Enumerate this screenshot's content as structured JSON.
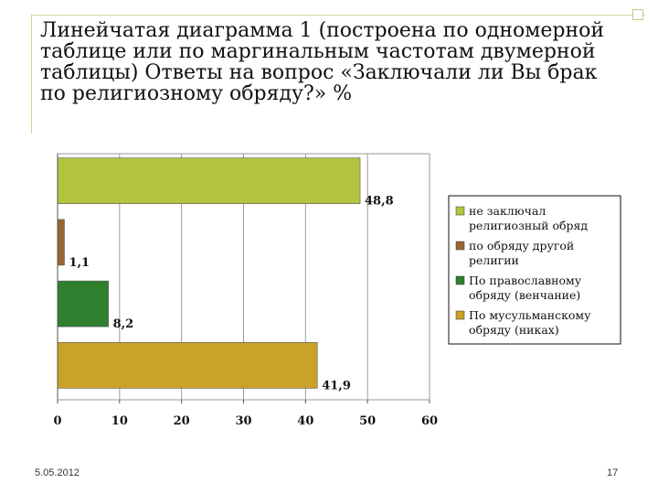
{
  "title": "Линейчатая диаграмма 1 (построена по одномерной таблице или по маргинальным частотам двумерной таблицы) Ответы на вопрос «Заключали ли Вы брак по религиозному обряду?» %",
  "footer": {
    "date": "5.05.2012",
    "page": "17"
  },
  "chart_data": {
    "type": "bar",
    "orientation": "horizontal",
    "series": [
      {
        "name": "не заключал религиозный обряд",
        "value": 48.8,
        "label": "48,8",
        "color": "#b5c43f"
      },
      {
        "name": "по обряду другой религии",
        "value": 1.1,
        "label": "1,1",
        "color": "#996633"
      },
      {
        "name": "По православному обряду (венчание)",
        "value": 8.2,
        "label": "8,2",
        "color": "#2f7f2f"
      },
      {
        "name": "По мусульманскому обряду (никах)",
        "value": 41.9,
        "label": "41,9",
        "color": "#c9a227"
      }
    ],
    "xlim": [
      0,
      60
    ],
    "xticks": [
      "0",
      "10",
      "20",
      "30",
      "40",
      "50",
      "60"
    ],
    "legend": {
      "position": "right",
      "entries": [
        [
          "не заключал",
          "религиозный обряд"
        ],
        [
          "по обряду другой",
          "религии"
        ],
        [
          "По православному",
          "обряду (венчание)"
        ],
        [
          "По мусульманскому",
          "обряду (никах)"
        ]
      ]
    },
    "grid": true
  }
}
